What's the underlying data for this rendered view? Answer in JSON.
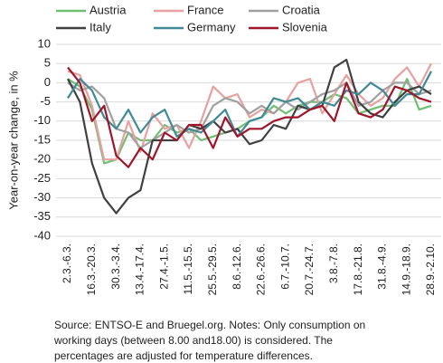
{
  "chart_data": {
    "type": "line",
    "y_label": "Year-on-year change, in %",
    "note": [
      "Source: ENTSO-E and Bruegel.org. Notes: Only consumption on",
      "working days (between 8.00 and18.00) is considered. The",
      "percentages are adjusted for temperature differences."
    ],
    "categories": [
      "2.3.-6.3.",
      null,
      "16.3.-20.3.",
      null,
      "30.3.-3.4.",
      null,
      "13.4.-17.4.",
      null,
      "27.4.-1.5.",
      null,
      "11.5.-15.5.",
      null,
      "25.5.-29.5.",
      null,
      "8.6.-12.6.",
      null,
      "22.6.-26.6.",
      null,
      "6.7.-10.7.",
      null,
      "20.7.-24.7.",
      null,
      "3.8.-7.8.",
      null,
      "17.8.-21.8.",
      null,
      "31.8.-4.9.",
      null,
      "14.9.-18.9.",
      null,
      "28.9.-2.10."
    ],
    "series": [
      {
        "name": "Austria",
        "color": "#6fbf73",
        "values": [
          1,
          -1,
          -7,
          -21,
          -20,
          -13,
          -15,
          -15,
          -11,
          -13,
          -12,
          -15,
          -14,
          -13,
          -12,
          -10,
          -9,
          -6,
          -8,
          -6,
          -5,
          -5,
          -3,
          -4,
          -8,
          -7,
          -6,
          -6,
          1,
          -7,
          -6
        ]
      },
      {
        "name": "France",
        "color": "#e8a0a0",
        "values": [
          3,
          2,
          -6,
          -20,
          -20,
          -10,
          -18,
          -8,
          -12,
          -11,
          -17,
          -10,
          -1,
          -4,
          -3,
          -9,
          -7,
          -8,
          -5,
          0,
          1,
          -8,
          -3,
          2,
          -3,
          -6,
          -4,
          1,
          4,
          -1,
          5
        ]
      },
      {
        "name": "Croatia",
        "color": "#a0a0a0",
        "values": [
          0,
          -2,
          -1,
          -4,
          -12,
          -13,
          -17,
          -15,
          -13,
          -11,
          -13,
          -12,
          -6,
          -4,
          -5,
          -8,
          -6,
          -8,
          -5,
          -7,
          -5,
          -3,
          -2,
          0,
          -6,
          -5,
          -2,
          0,
          0,
          -3,
          -2
        ]
      },
      {
        "name": "Italy",
        "color": "#404040",
        "values": [
          1,
          -5,
          -21,
          -30,
          -34,
          -30,
          -28,
          -15,
          -15,
          -15,
          -11,
          -12,
          -10,
          -13,
          -12,
          -16,
          -15,
          -11,
          -12,
          -6,
          -7,
          -6,
          4,
          6,
          -5,
          -8,
          -9,
          -5,
          -2,
          -1,
          -3
        ]
      },
      {
        "name": "Germany",
        "color": "#3f8a95",
        "values": [
          -4,
          1,
          -2,
          -9,
          -12,
          -7,
          -13,
          -9,
          -7,
          -14,
          -12,
          -13,
          -10,
          -7,
          -14,
          -10,
          -9,
          -4,
          -5,
          -4,
          -7,
          -5,
          -6,
          -2,
          -3,
          0,
          -2,
          -6,
          -3,
          -3,
          3
        ]
      },
      {
        "name": "Slovenia",
        "color": "#a0152a",
        "values": [
          4,
          0,
          -10,
          -6,
          -19,
          -22,
          -17,
          -20,
          -13,
          -15,
          -11,
          -11,
          -17,
          -9,
          -14,
          -12,
          -12,
          -10,
          -9,
          -9,
          -7,
          -6,
          -10,
          0,
          -8,
          -9,
          -7,
          -1,
          -2,
          -4,
          -5
        ]
      }
    ],
    "ylim": [
      -40,
      10
    ],
    "yticks": [
      -40,
      -35,
      -30,
      -25,
      -20,
      -15,
      -10,
      -5,
      0,
      5,
      10
    ],
    "grid": true
  }
}
